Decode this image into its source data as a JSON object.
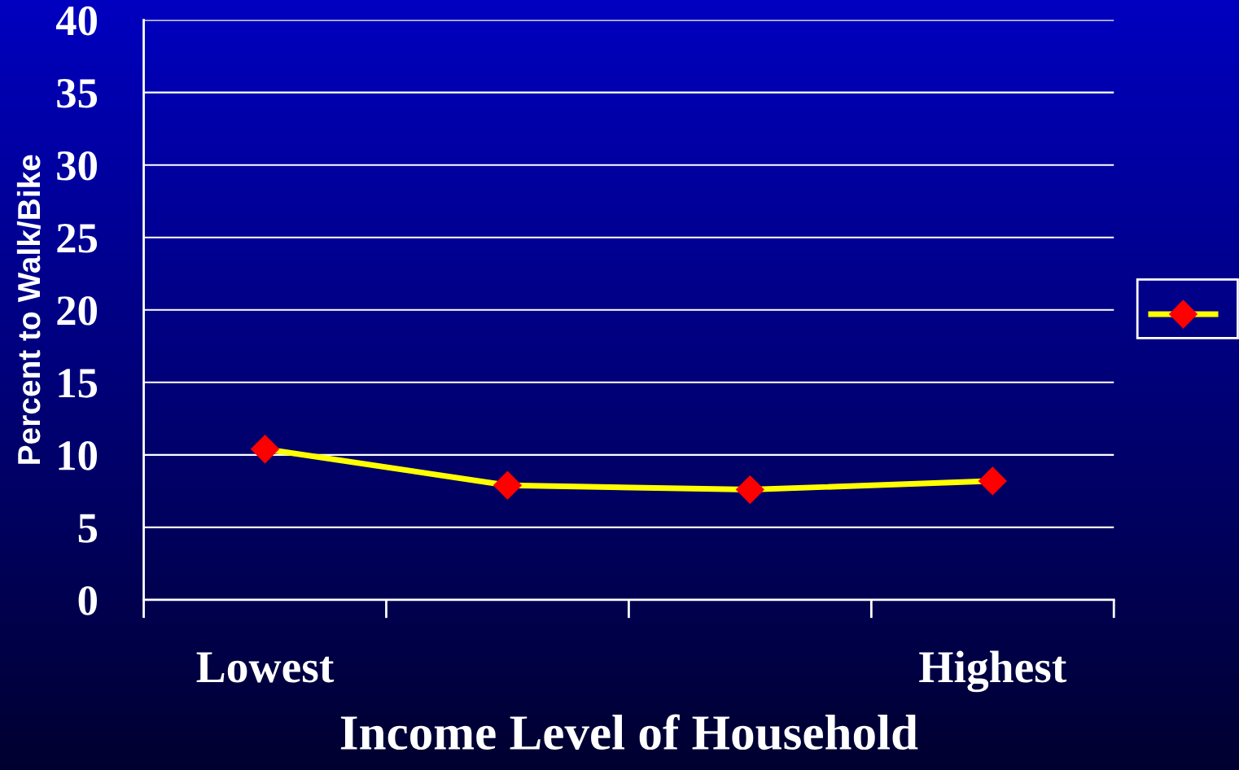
{
  "chart_data": {
    "type": "line",
    "xlabel": "Income Level of Household",
    "ylabel": "Percent to Walk/Bike",
    "categories": [
      "Lowest",
      null,
      null,
      "Highest"
    ],
    "series": [
      {
        "color": "#ffff00",
        "colors": [
          "#ff0000",
          "#ff0000",
          "#ff0000",
          "#ff0000"
        ],
        "values": [
          10.4,
          7.9,
          7.6,
          8.2
        ]
      }
    ],
    "ylim": [
      0,
      40
    ],
    "yticks": [
      0,
      5,
      10,
      15,
      20,
      25,
      30,
      35,
      40
    ],
    "grid": "y",
    "marker": "diamond",
    "line_style": "solid"
  }
}
